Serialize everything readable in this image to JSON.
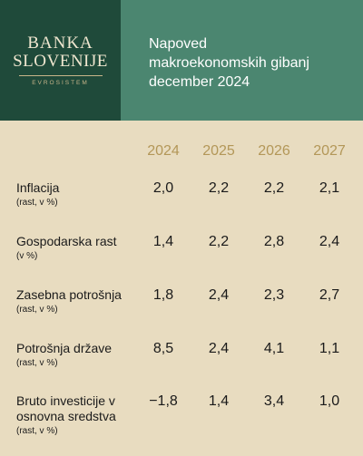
{
  "logo": {
    "line1": "BANKA",
    "line2": "SLOVENIJE",
    "sub": "EVROSISTEM"
  },
  "title": {
    "line1": "Napoved",
    "line2": "makroekonomskih gibanj",
    "line3": "december 2024"
  },
  "years": [
    "2024",
    "2025",
    "2026",
    "2027"
  ],
  "rows": [
    {
      "label": "Inflacija",
      "label2": "",
      "sub": "(rast, v %)",
      "values": [
        "2,0",
        "2,2",
        "2,2",
        "2,1"
      ]
    },
    {
      "label": "Gospodarska rast",
      "label2": "",
      "sub": "(v %)",
      "values": [
        "1,4",
        "2,2",
        "2,8",
        "2,4"
      ]
    },
    {
      "label": "Zasebna potrošnja",
      "label2": "",
      "sub": "(rast, v %)",
      "values": [
        "1,8",
        "2,4",
        "2,3",
        "2,7"
      ]
    },
    {
      "label": "Potrošnja države",
      "label2": "",
      "sub": "(rast, v %)",
      "values": [
        "8,5",
        "2,4",
        "4,1",
        "1,1"
      ]
    },
    {
      "label": "Bruto investicije v",
      "label2": "osnovna sredstva",
      "sub": "(rast, v %)",
      "values": [
        "−1,8",
        "1,4",
        "3,4",
        "1,0"
      ]
    }
  ],
  "colors": {
    "background": "#e8dcc0",
    "logo_bg": "#1f4a3a",
    "title_bg": "#4b8670",
    "year_text": "#b39758"
  }
}
